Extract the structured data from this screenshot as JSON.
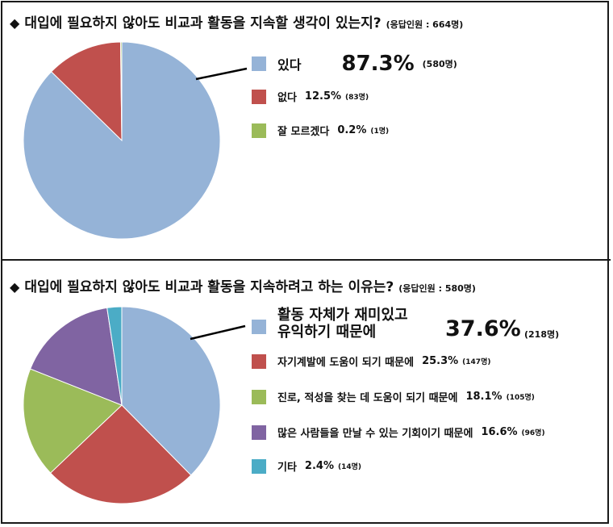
{
  "chart_data": [
    {
      "type": "pie",
      "title": "대입에 필요하지 않아도 비교과 활동을 지속할 생각이 있는지?",
      "respondents": "(응답인원 : 664명)",
      "categories": [
        "있다",
        "없다",
        "잘 모르겠다"
      ],
      "values": [
        87.3,
        12.5,
        0.2
      ],
      "percent_labels": [
        "87.3%",
        "12.5%",
        "0.2%"
      ],
      "counts": [
        "(580명)",
        "(83명)",
        "(1명)"
      ],
      "colors": [
        "#95B3D7",
        "#C0504D",
        "#9BBB59"
      ],
      "legend": "right"
    },
    {
      "type": "pie",
      "title": "대입에 필요하지 않아도 비교과 활동을 지속하려고 하는 이유는?",
      "respondents": "(응답인원 : 580명)",
      "categories": [
        "활동 자체가 재미있고 유익하기 때문에",
        "자기계발에 도움이 되기 때문에",
        "진로, 적성을 찾는 데 도움이 되기 때문에",
        "많은 사람들을 만날 수 있는 기회이기 때문에",
        "기타"
      ],
      "category_line1": "활동 자체가 재미있고",
      "category_line2": "유익하기 때문에",
      "values": [
        37.6,
        25.3,
        18.1,
        16.6,
        2.4
      ],
      "percent_labels": [
        "37.6%",
        "25.3%",
        "18.1%",
        "16.6%",
        "2.4%"
      ],
      "counts": [
        "(218명)",
        "(147명)",
        "(105명)",
        "(96명)",
        "(14명)"
      ],
      "colors": [
        "#95B3D7",
        "#C0504D",
        "#9BBB59",
        "#8064A2",
        "#4BACC6"
      ],
      "legend": "right"
    }
  ],
  "bullet": "◆"
}
